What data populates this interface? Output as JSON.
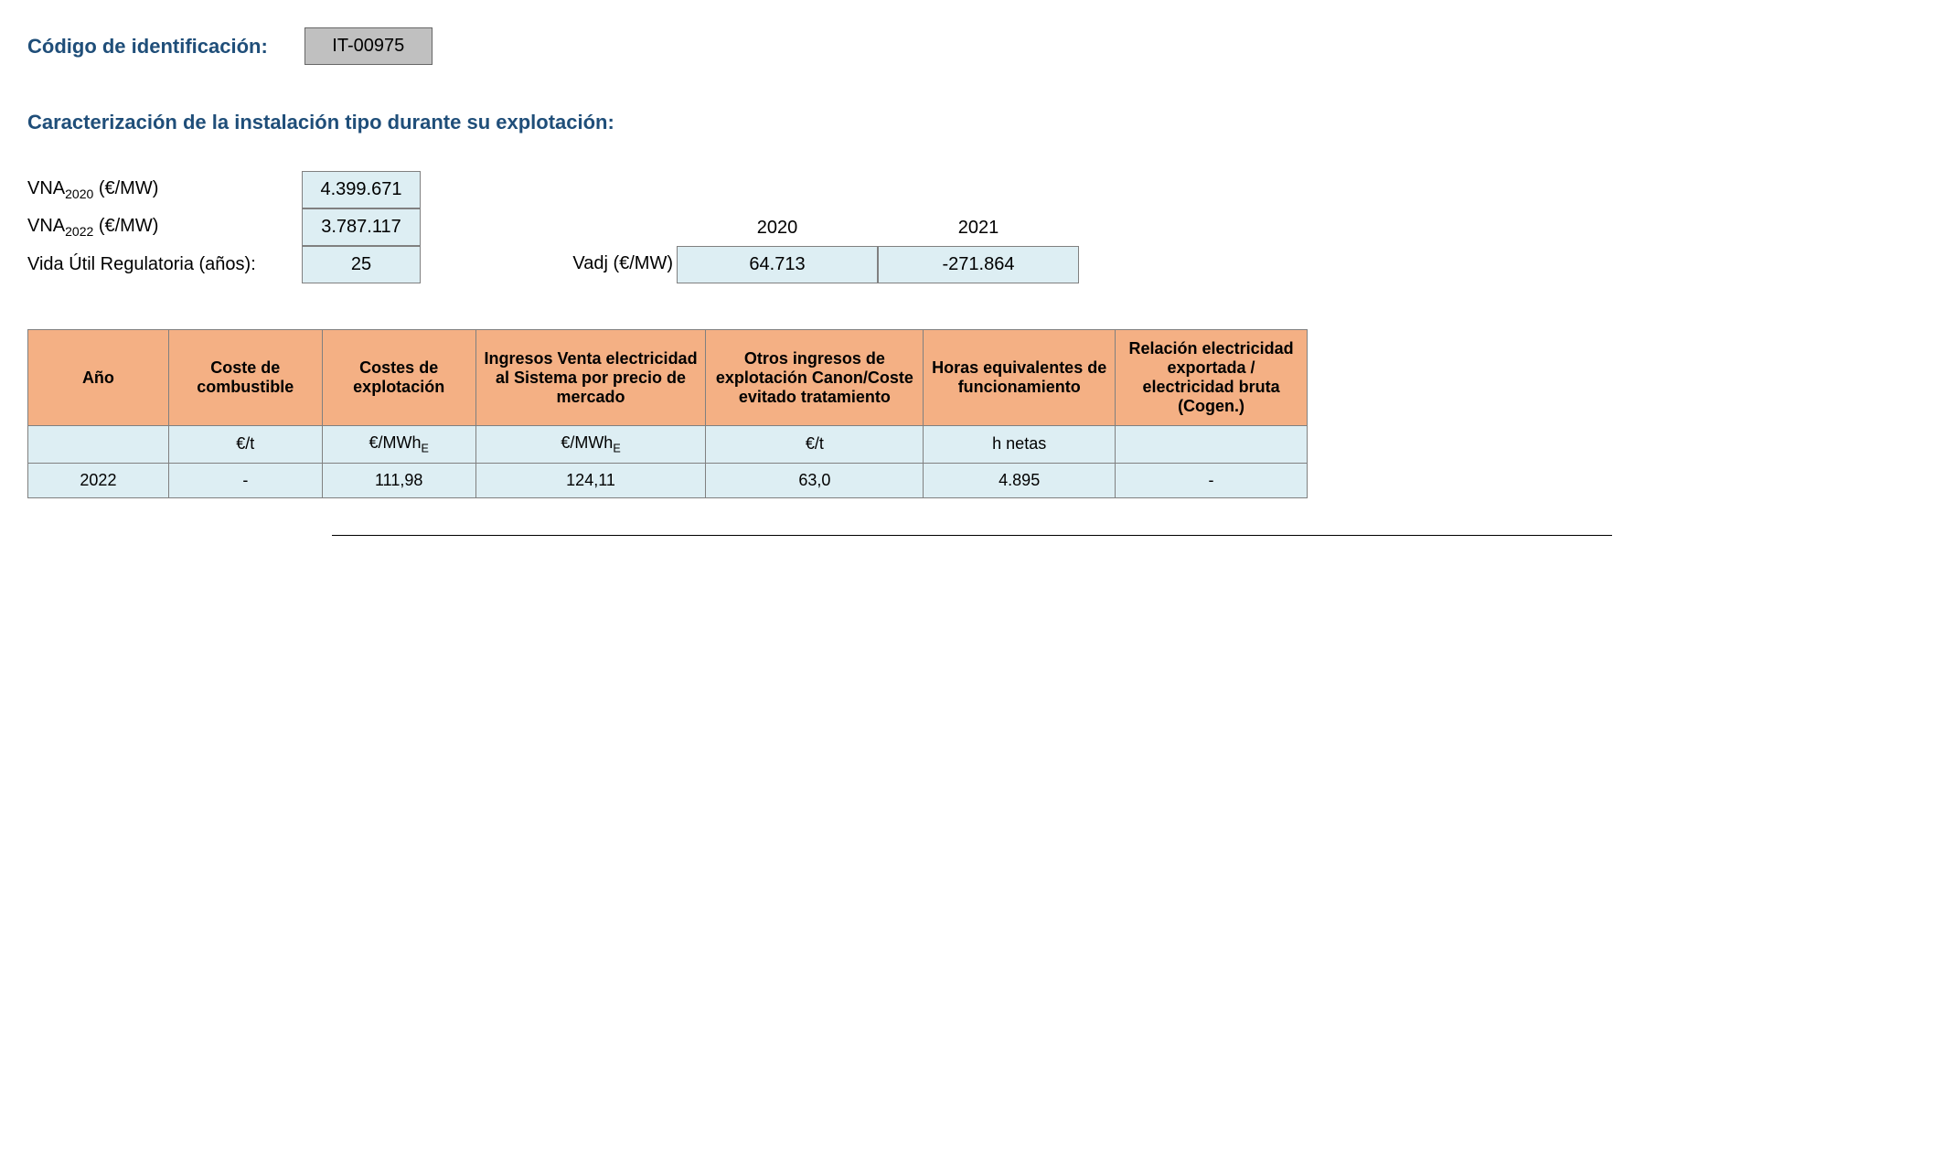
{
  "header": {
    "code_label": "Código de identificación:",
    "code_value": "IT-00975"
  },
  "section_title": "Caracterización de la instalación tipo durante su explotación:",
  "params": {
    "vna2020_label_prefix": "VNA",
    "vna2020_sub": "2020",
    "vna_unit": " (€/MW)",
    "vna2020_value": "4.399.671",
    "vna2022_sub": "2022",
    "vna2022_value": "3.787.117",
    "vida_label": "Vida Útil Regulatoria (años):",
    "vida_value": "25"
  },
  "vadj": {
    "label": "Vadj (€/MW)",
    "years": [
      "2020",
      "2021"
    ],
    "values": [
      "64.713",
      "-271.864"
    ]
  },
  "table": {
    "columns": [
      "Año",
      "Coste de combustible",
      "Costes de explotación",
      "Ingresos Venta electricidad al Sistema por precio de mercado",
      "Otros ingresos de explotación Canon/Coste evitado tratamiento",
      "Horas equivalentes de funcionamiento",
      "Relación electricidad exportada / electricidad bruta (Cogen.)"
    ],
    "units": [
      "",
      "€/t",
      "€/MWh",
      "€/MWh",
      "€/t",
      "h netas",
      ""
    ],
    "unit_sub": [
      "",
      "",
      "E",
      "E",
      "",
      "",
      ""
    ],
    "rows": [
      [
        "2022",
        "-",
        "111,98",
        "124,11",
        "63,0",
        "4.895",
        "-"
      ]
    ],
    "col_widths": [
      "11%",
      "12%",
      "12%",
      "18%",
      "17%",
      "15%",
      "20%"
    ],
    "header_bg": "#f4b084",
    "cell_bg": "#ddeef3",
    "border_color": "#808080"
  },
  "colors": {
    "title_color": "#1f4e79",
    "code_box_bg": "#c0c0c0",
    "value_cell_bg": "#ddeef3"
  }
}
